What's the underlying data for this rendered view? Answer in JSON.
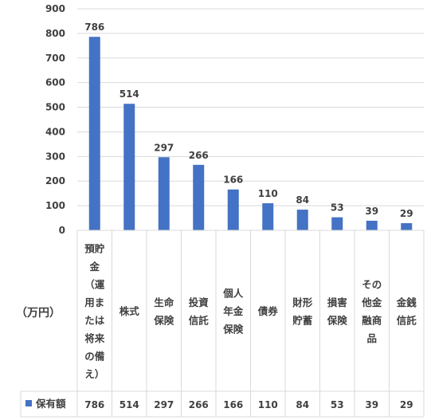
{
  "chart_data": {
    "type": "bar",
    "unit_label": "（万円）",
    "categories": [
      "預貯金（運用または将来の備え）",
      "株式",
      "生命保険",
      "投資信託",
      "個人年金保険",
      "債券",
      "財形貯蓄",
      "損害保険",
      "その他金融商品",
      "金銭信託"
    ],
    "category_lines": [
      [
        "預貯",
        "金",
        "（運",
        "用ま",
        "たは",
        "将来",
        "の備",
        "え）"
      ],
      [
        "株式"
      ],
      [
        "生命",
        "保険"
      ],
      [
        "投資",
        "信託"
      ],
      [
        "個人",
        "年金",
        "保険"
      ],
      [
        "債券"
      ],
      [
        "財形",
        "貯蓄"
      ],
      [
        "損害",
        "保険"
      ],
      [
        "その",
        "他金",
        "融商",
        "品"
      ],
      [
        "金銭",
        "信託"
      ]
    ],
    "series": [
      {
        "name": "保有額",
        "values": [
          786,
          514,
          297,
          266,
          166,
          110,
          84,
          53,
          39,
          29
        ]
      }
    ],
    "ylim": [
      0,
      900
    ],
    "yticks": [
      0,
      100,
      200,
      300,
      400,
      500,
      600,
      700,
      800,
      900
    ],
    "grid": true,
    "legend": "data-table",
    "colors": {
      "bar": "#4472C4",
      "grid": "#D9D9D9",
      "text": "#404040"
    }
  }
}
